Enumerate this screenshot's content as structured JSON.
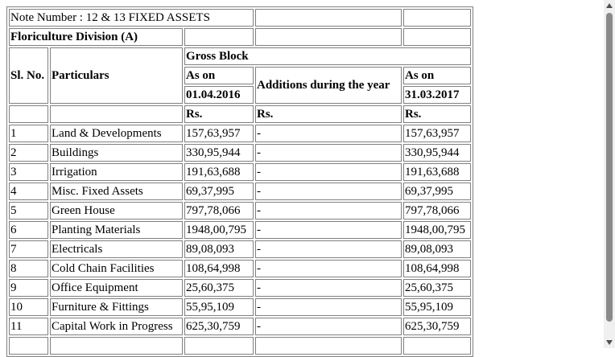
{
  "note": {
    "title": "Note Number : 12 & 13 FIXED ASSETS"
  },
  "division": {
    "title": "Floriculture Division (A)"
  },
  "headers": {
    "sl_no": "Sl. No.",
    "particulars": "Particulars",
    "gross_block": "Gross Block",
    "as_on": "As on",
    "opening_date": "01.04.2016",
    "additions": "Additions during the year",
    "closing_as_on": "As on",
    "closing_date": "31.03.2017",
    "unit_opening": "Rs.",
    "unit_additions": "Rs.",
    "unit_closing": "Rs."
  },
  "rows": [
    {
      "sl": "1",
      "particular": "Land & Developments",
      "opening": "157,63,957",
      "additions": "-",
      "closing": "157,63,957"
    },
    {
      "sl": "2",
      "particular": "Buildings",
      "opening": "330,95,944",
      "additions": "-",
      "closing": "330,95,944"
    },
    {
      "sl": "3",
      "particular": "Irrigation",
      "opening": "191,63,688",
      "additions": "-",
      "closing": "191,63,688"
    },
    {
      "sl": "4",
      "particular": "Misc. Fixed Assets",
      "opening": "69,37,995",
      "additions": "-",
      "closing": "69,37,995"
    },
    {
      "sl": "5",
      "particular": "Green House",
      "opening": "797,78,066",
      "additions": "-",
      "closing": "797,78,066"
    },
    {
      "sl": "6",
      "particular": "Planting Materials",
      "opening": "1948,00,795",
      "additions": "-",
      "closing": "1948,00,795"
    },
    {
      "sl": "7",
      "particular": "Electricals",
      "opening": "89,08,093",
      "additions": "-",
      "closing": "89,08,093"
    },
    {
      "sl": "8",
      "particular": "Cold Chain Facilities",
      "opening": "108,64,998",
      "additions": "-",
      "closing": "108,64,998"
    },
    {
      "sl": "9",
      "particular": "Office Equipment",
      "opening": "25,60,375",
      "additions": "-",
      "closing": "25,60,375"
    },
    {
      "sl": "10",
      "particular": "Furniture & Fittings",
      "opening": "55,95,109",
      "additions": "-",
      "closing": "55,95,109"
    },
    {
      "sl": "11",
      "particular": "Capital Work in Progress",
      "opening": "625,30,759",
      "additions": "-",
      "closing": "625,30,759"
    },
    {
      "sl": "",
      "particular": "",
      "opening": "",
      "additions": "",
      "closing": ""
    }
  ]
}
